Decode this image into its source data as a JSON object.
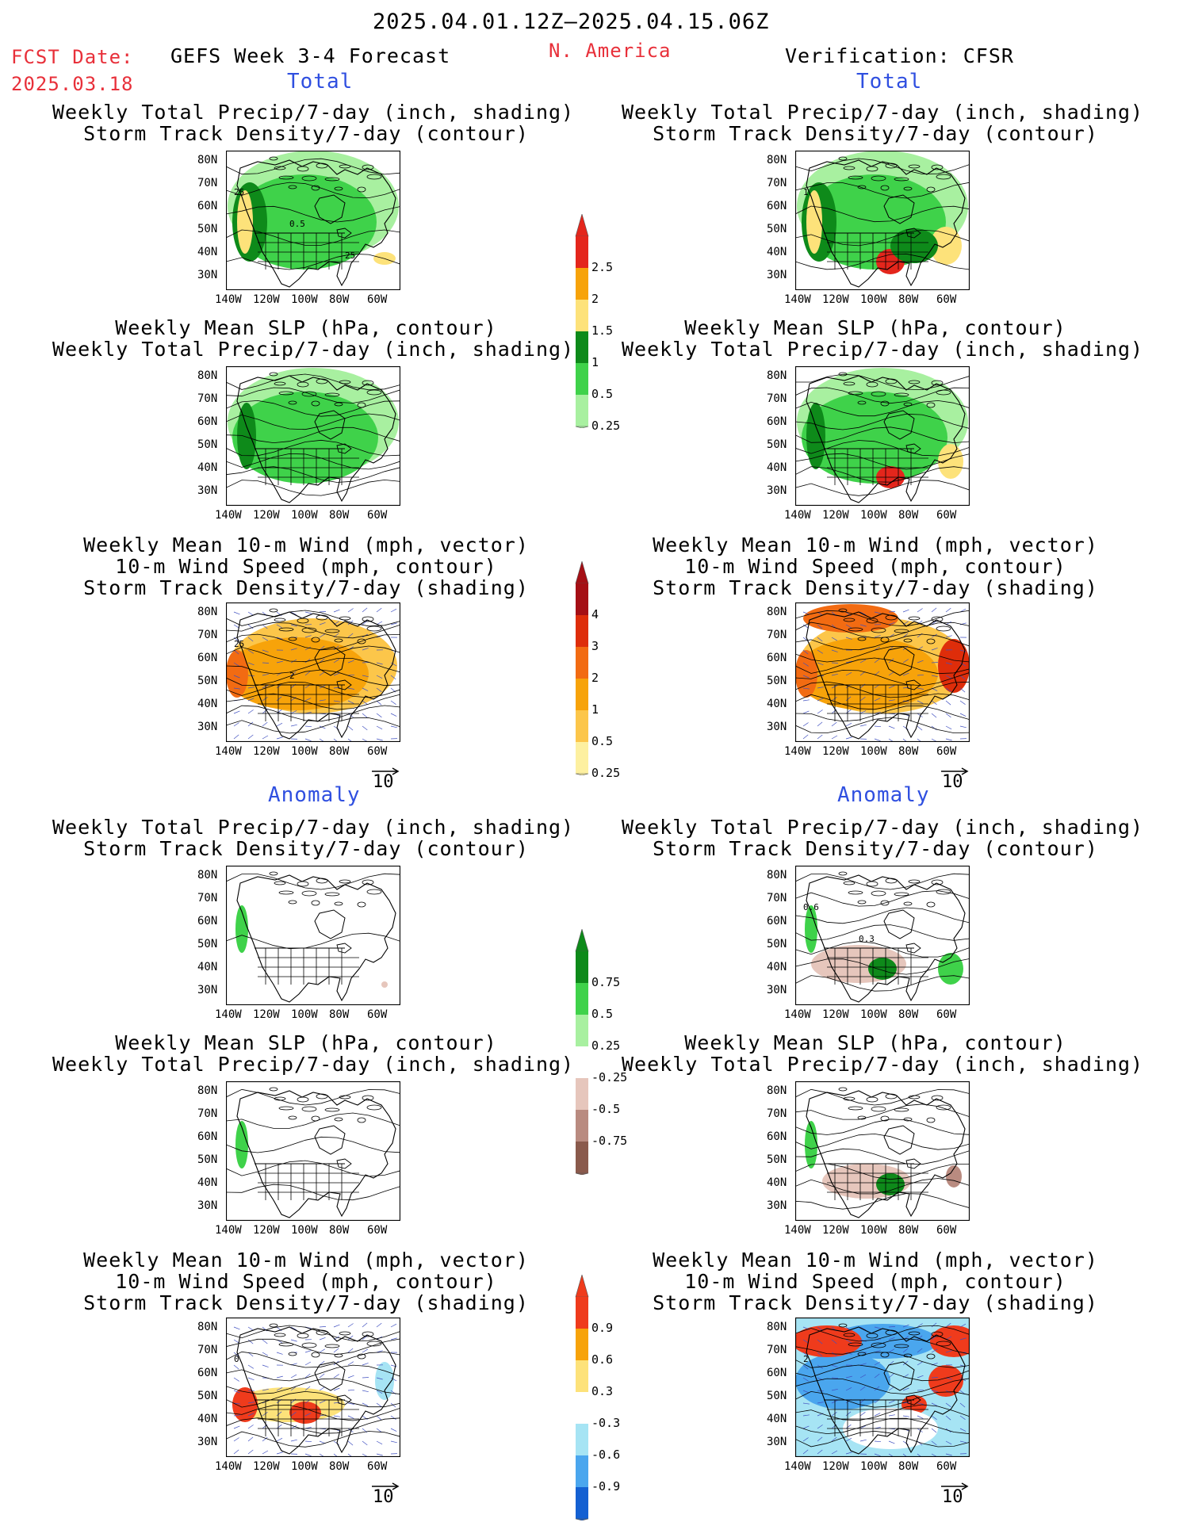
{
  "header": {
    "date_range": "2025.04.01.12Z–2025.04.15.06Z",
    "fcst_label": "FCST Date:",
    "fcst_date": "2025.03.18",
    "forecast_title": "GEFS Week 3-4 Forecast",
    "region": "N. America",
    "verification": "Verification: CFSR"
  },
  "sections": {
    "total": "Total",
    "anomaly": "Anomaly"
  },
  "titles": {
    "precip_track": [
      "Weekly Total Precip/7-day (inch, shading)",
      "Storm Track Density/7-day (contour)"
    ],
    "slp_precip": [
      "Weekly Mean SLP (hPa, contour)",
      "Weekly Total Precip/7-day (inch, shading)"
    ],
    "wind_track": [
      "Weekly Mean 10-m Wind (mph, vector)",
      "10-m Wind Speed (mph, contour)",
      "Storm Track Density/7-day (shading)"
    ]
  },
  "axes": {
    "lat": [
      "80N",
      "70N",
      "60N",
      "50N",
      "40N",
      "30N"
    ],
    "lon": [
      "140W",
      "120W",
      "100W",
      "80W",
      "60W"
    ]
  },
  "vector_ref": "10",
  "contour_labels": {
    "fc_precip": [
      "25",
      "0.5",
      "25"
    ],
    "fc_wind": [
      "25",
      "2"
    ],
    "ob_precip": [
      "1"
    ],
    "ob_anom_precip": [
      "0.6",
      "0.3"
    ],
    "fc_anom_wind": [
      "0"
    ],
    "ob_anom_wind": [
      "2"
    ]
  },
  "colorbars": {
    "precip_total": {
      "labels": [
        "2.5",
        "2",
        "1.5",
        "1",
        "0.5",
        "0.25"
      ],
      "colors": [
        "#e4261c",
        "#f7a30a",
        "#fde27a",
        "#0e8a1a",
        "#3fd24a",
        "#a8f0a0"
      ]
    },
    "track_total": {
      "labels": [
        "4",
        "3",
        "2",
        "1",
        "0.5",
        "0.25"
      ],
      "colors": [
        "#a50f15",
        "#de2d0a",
        "#f26b12",
        "#f7a30a",
        "#fcc64a",
        "#fdf0a0"
      ]
    },
    "precip_anom": {
      "labels": [
        "0.75",
        "0.5",
        "0.25",
        "-0.25",
        "-0.5",
        "-0.75"
      ],
      "colors": [
        "#0e8a1a",
        "#3fd24a",
        "#a8f0a0",
        "#ffffff",
        "#e6c6bc",
        "#b98b80",
        "#8a5a4c"
      ]
    },
    "wind_anom": {
      "labels": [
        "0.9",
        "0.6",
        "0.3",
        "-0.3",
        "-0.6",
        "-0.9"
      ],
      "colors": [
        "#ef3b1c",
        "#f7a30a",
        "#fde27a",
        "#ffffff",
        "#a6e4f4",
        "#4aa6ee",
        "#1460d2"
      ]
    }
  }
}
